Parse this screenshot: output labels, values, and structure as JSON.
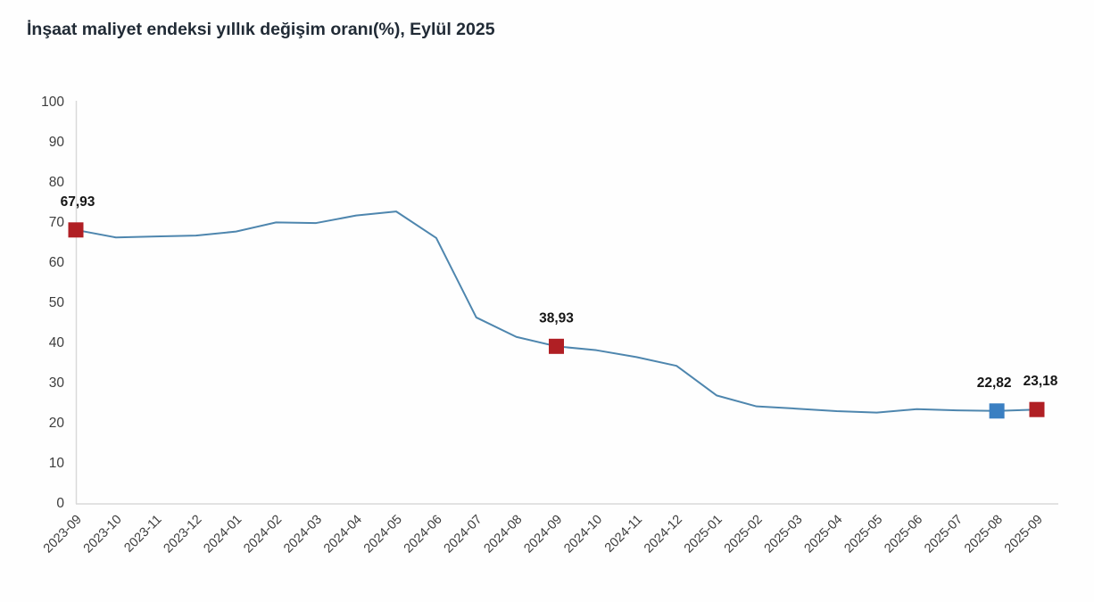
{
  "header": {
    "title": "İnşaat maliyet endeksi yıllık değişim oranı(%), Eylül 2025"
  },
  "chart_data": {
    "type": "line",
    "title": "İnşaat maliyet endeksi yıllık değişim oranı(%), Eylül 2025",
    "categories": [
      "2023-09",
      "2023-10",
      "2023-11",
      "2023-12",
      "2024-01",
      "2024-02",
      "2024-03",
      "2024-04",
      "2024-05",
      "2024-06",
      "2024-07",
      "2024-08",
      "2024-09",
      "2024-10",
      "2024-11",
      "2024-12",
      "2025-01",
      "2025-02",
      "2025-03",
      "2025-04",
      "2025-05",
      "2025-06",
      "2025-07",
      "2025-08",
      "2025-09"
    ],
    "values": [
      67.93,
      66.06,
      66.31,
      66.54,
      67.52,
      69.81,
      69.65,
      71.52,
      72.53,
      65.93,
      46.12,
      41.28,
      38.93,
      37.96,
      36.25,
      34.07,
      26.7,
      23.96,
      23.4,
      22.77,
      22.42,
      23.28,
      22.96,
      22.82,
      23.18
    ],
    "ylabel": "",
    "xlabel": "",
    "ylim": [
      0,
      100
    ],
    "ytick_step": 10,
    "yticks": [
      "0",
      "10",
      "20",
      "30",
      "40",
      "50",
      "60",
      "70",
      "80",
      "90",
      "100"
    ],
    "grid": false,
    "legend": false,
    "x_labels_rotated_deg": 45,
    "line_color": "#4e86ae",
    "axis_color": "#d9d9d9",
    "labeled_points": [
      {
        "category": "2023-09",
        "index": 0,
        "value": 67.93,
        "label": "67,93",
        "marker_color": "#b01f24",
        "label_dx": 2
      },
      {
        "category": "2024-09",
        "index": 12,
        "value": 38.93,
        "label": "38,93",
        "marker_color": "#b01f24",
        "label_dx": 0
      },
      {
        "category": "2025-08",
        "index": 23,
        "value": 22.82,
        "label": "22,82",
        "marker_color": "#3a7fc2",
        "label_dx": -3
      },
      {
        "category": "2025-09",
        "index": 24,
        "value": 23.18,
        "label": "23,18",
        "marker_color": "#b01f24",
        "label_dx": 4
      }
    ]
  }
}
